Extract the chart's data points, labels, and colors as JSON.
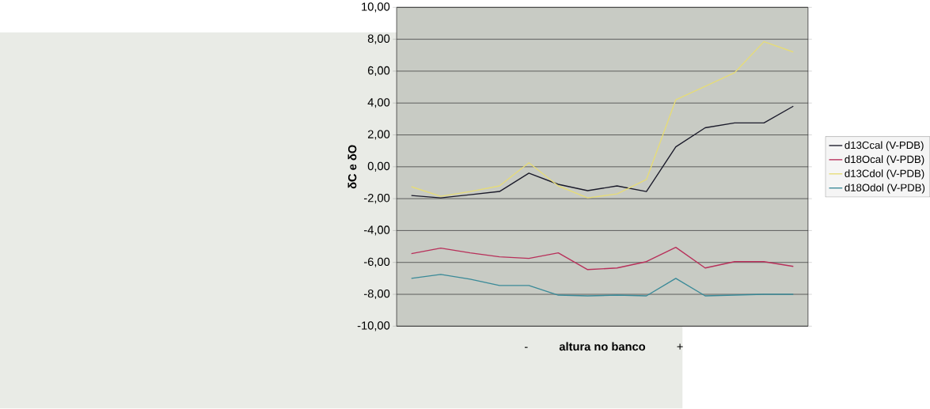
{
  "chart_data": {
    "type": "line",
    "xlabel": "altura no banco",
    "ylabel": "δC e δO",
    "annotations": [
      "-",
      "+"
    ],
    "categories": [
      null,
      null,
      null,
      null,
      null,
      null,
      null,
      null,
      null,
      null,
      null,
      null,
      null,
      null
    ],
    "series": [
      {
        "name": "d13Ccal (V-PDB)",
        "color": "#1a1a2a",
        "values": [
          -1.8,
          -1.95,
          -1.75,
          -1.55,
          -0.4,
          -1.1,
          -1.5,
          -1.2,
          -1.55,
          1.25,
          2.45,
          2.75,
          2.75,
          3.8
        ]
      },
      {
        "name": "d18Ocal (V-PDB)",
        "color": "#b8305a",
        "values": [
          -5.45,
          -5.1,
          -5.4,
          -5.65,
          -5.75,
          -5.4,
          -6.45,
          -6.35,
          -5.95,
          -5.05,
          -6.35,
          -5.95,
          -5.95,
          -6.25
        ]
      },
      {
        "name": "d13Cdol (V-PDB)",
        "color": "#e6dc78",
        "values": [
          -1.25,
          -1.85,
          -1.55,
          -1.2,
          0.25,
          -1.2,
          -1.95,
          -1.7,
          -0.8,
          4.2,
          5.05,
          5.9,
          7.85,
          7.2
        ]
      },
      {
        "name": "d18Odol (V-PDB)",
        "color": "#3a8a98",
        "values": [
          -7.0,
          -6.75,
          -7.05,
          -7.45,
          -7.45,
          -8.05,
          -8.1,
          -8.05,
          -8.1,
          -7.0,
          -8.1,
          -8.05,
          -8.0,
          -8.0
        ]
      }
    ],
    "ylim": [
      -10,
      10
    ],
    "yticks": [
      {
        "value": -10,
        "label": "-10,00"
      },
      {
        "value": -8,
        "label": "-8,00"
      },
      {
        "value": -6,
        "label": "-6,00"
      },
      {
        "value": -4,
        "label": "-4,00"
      },
      {
        "value": -2,
        "label": "-2,00"
      },
      {
        "value": 0,
        "label": "0,00"
      },
      {
        "value": 2,
        "label": "2,00"
      },
      {
        "value": 4,
        "label": "4,00"
      },
      {
        "value": 6,
        "label": "6,00"
      },
      {
        "value": 8,
        "label": "8,00"
      },
      {
        "value": 10,
        "label": "10,00"
      }
    ],
    "grid": "y",
    "legend": "right",
    "tick_labels": "y",
    "marker": "none",
    "line_style": "solid"
  }
}
